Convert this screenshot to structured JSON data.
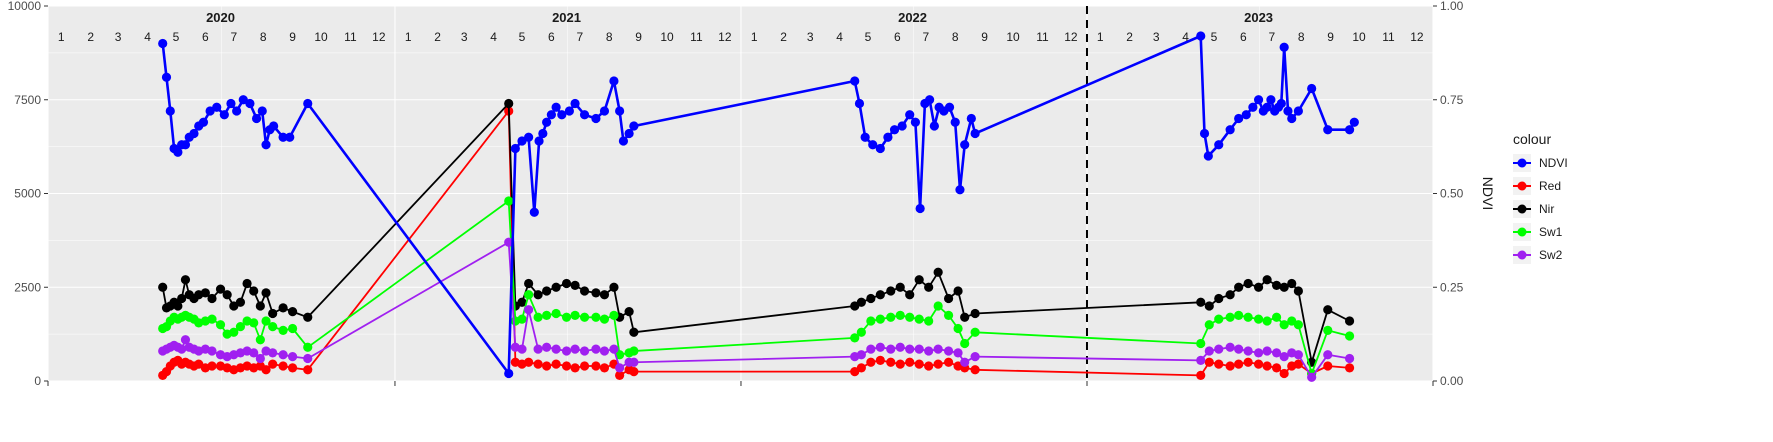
{
  "chart_data": {
    "type": "line",
    "x_unit": "date",
    "y_left_label": "",
    "y_right_label": "NDVI",
    "y_left_range": [
      0,
      10000
    ],
    "y_right_range": [
      0,
      1
    ],
    "y_left_ticks": [
      "0",
      "2500",
      "5000",
      "7500",
      "10000"
    ],
    "y_right_ticks": [
      "0.00",
      "0.25",
      "0.50",
      "0.75",
      "1.00"
    ],
    "x_range": [
      "2020-01-01",
      "2024-01-01"
    ],
    "years": [
      "2020",
      "2021",
      "2022",
      "2023"
    ],
    "months": [
      "1",
      "2",
      "3",
      "4",
      "5",
      "6",
      "7",
      "8",
      "9",
      "10",
      "11",
      "12"
    ],
    "vline_date": "2023-01-01",
    "grid": true,
    "legend": {
      "title": "colour",
      "position": "right"
    },
    "series": [
      {
        "name": "NDVI",
        "color": "#0000ff",
        "axis": "right",
        "x": [
          "2020-05-01",
          "2020-05-05",
          "2020-05-09",
          "2020-05-13",
          "2020-05-17",
          "2020-05-21",
          "2020-05-25",
          "2020-05-29",
          "2020-06-03",
          "2020-06-08",
          "2020-06-13",
          "2020-06-20",
          "2020-06-27",
          "2020-07-05",
          "2020-07-12",
          "2020-07-18",
          "2020-07-25",
          "2020-08-01",
          "2020-08-08",
          "2020-08-14",
          "2020-08-18",
          "2020-08-22",
          "2020-08-26",
          "2020-09-05",
          "2020-09-12",
          "2020-10-01",
          "2021-05-01",
          "2021-05-08",
          "2021-05-15",
          "2021-05-22",
          "2021-05-28",
          "2021-06-02",
          "2021-06-06",
          "2021-06-10",
          "2021-06-15",
          "2021-06-20",
          "2021-06-26",
          "2021-07-04",
          "2021-07-10",
          "2021-07-20",
          "2021-08-01",
          "2021-08-10",
          "2021-08-20",
          "2021-08-26",
          "2021-08-30",
          "2021-09-05",
          "2021-09-10",
          "2022-05-01",
          "2022-05-06",
          "2022-05-12",
          "2022-05-20",
          "2022-05-28",
          "2022-06-05",
          "2022-06-12",
          "2022-06-20",
          "2022-06-28",
          "2022-07-04",
          "2022-07-09",
          "2022-07-14",
          "2022-07-19",
          "2022-07-24",
          "2022-07-29",
          "2022-08-03",
          "2022-08-09",
          "2022-08-15",
          "2022-08-20",
          "2022-08-25",
          "2022-09-01",
          "2022-09-05",
          "2023-05-01",
          "2023-05-05",
          "2023-05-09",
          "2023-05-20",
          "2023-06-01",
          "2023-06-10",
          "2023-06-18",
          "2023-06-25",
          "2023-07-01",
          "2023-07-06",
          "2023-07-10",
          "2023-07-14",
          "2023-07-18",
          "2023-07-22",
          "2023-07-25",
          "2023-07-28",
          "2023-08-01",
          "2023-08-05",
          "2023-08-12",
          "2023-08-26",
          "2023-09-12",
          "2023-10-05",
          "2023-10-10"
        ],
        "y": [
          0.9,
          0.81,
          0.72,
          0.62,
          0.61,
          0.63,
          0.63,
          0.65,
          0.66,
          0.68,
          0.69,
          0.72,
          0.73,
          0.71,
          0.74,
          0.72,
          0.75,
          0.74,
          0.7,
          0.72,
          0.63,
          0.67,
          0.68,
          0.65,
          0.65,
          0.74,
          0.02,
          0.62,
          0.64,
          0.65,
          0.45,
          0.64,
          0.66,
          0.69,
          0.71,
          0.73,
          0.71,
          0.72,
          0.74,
          0.71,
          0.7,
          0.72,
          0.8,
          0.72,
          0.64,
          0.66,
          0.68,
          0.8,
          0.74,
          0.65,
          0.63,
          0.62,
          0.65,
          0.67,
          0.68,
          0.71,
          0.69,
          0.46,
          0.74,
          0.75,
          0.68,
          0.73,
          0.72,
          0.73,
          0.69,
          0.51,
          0.63,
          0.7,
          0.66,
          0.92,
          0.66,
          0.6,
          0.63,
          0.67,
          0.7,
          0.71,
          0.73,
          0.75,
          0.72,
          0.73,
          0.75,
          0.72,
          0.73,
          0.74,
          0.89,
          0.72,
          0.7,
          0.72,
          0.78,
          0.67,
          0.67,
          0.69
        ]
      },
      {
        "name": "Red",
        "color": "#ff0000",
        "axis": "left",
        "x": [
          "2020-05-01",
          "2020-05-05",
          "2020-05-09",
          "2020-05-13",
          "2020-05-17",
          "2020-05-21",
          "2020-05-25",
          "2020-05-29",
          "2020-06-03",
          "2020-06-08",
          "2020-06-15",
          "2020-06-22",
          "2020-07-01",
          "2020-07-08",
          "2020-07-15",
          "2020-07-22",
          "2020-07-29",
          "2020-08-05",
          "2020-08-12",
          "2020-08-18",
          "2020-08-25",
          "2020-09-05",
          "2020-09-15",
          "2020-10-01",
          "2021-05-01",
          "2021-05-08",
          "2021-05-15",
          "2021-05-22",
          "2021-06-01",
          "2021-06-10",
          "2021-06-20",
          "2021-07-01",
          "2021-07-10",
          "2021-07-20",
          "2021-08-01",
          "2021-08-10",
          "2021-08-20",
          "2021-08-26",
          "2021-09-05",
          "2021-09-10",
          "2022-05-01",
          "2022-05-08",
          "2022-05-18",
          "2022-05-28",
          "2022-06-08",
          "2022-06-18",
          "2022-06-28",
          "2022-07-08",
          "2022-07-18",
          "2022-07-28",
          "2022-08-08",
          "2022-08-18",
          "2022-08-25",
          "2022-09-05",
          "2023-05-01",
          "2023-05-10",
          "2023-05-20",
          "2023-06-01",
          "2023-06-10",
          "2023-06-20",
          "2023-07-01",
          "2023-07-10",
          "2023-07-20",
          "2023-07-28",
          "2023-08-05",
          "2023-08-12",
          "2023-08-26",
          "2023-09-12",
          "2023-10-05"
        ],
        "y": [
          150,
          250,
          400,
          500,
          550,
          450,
          500,
          450,
          400,
          450,
          350,
          400,
          400,
          350,
          300,
          350,
          400,
          350,
          400,
          300,
          450,
          400,
          350,
          300,
          7200,
          500,
          450,
          500,
          450,
          400,
          450,
          400,
          350,
          400,
          400,
          350,
          450,
          150,
          300,
          250,
          250,
          350,
          500,
          550,
          500,
          450,
          500,
          450,
          400,
          450,
          500,
          400,
          350,
          300,
          150,
          500,
          450,
          400,
          450,
          500,
          450,
          400,
          350,
          200,
          400,
          450,
          200,
          400,
          350
        ]
      },
      {
        "name": "Nir",
        "color": "#000000",
        "axis": "left",
        "x": [
          "2020-05-01",
          "2020-05-05",
          "2020-05-09",
          "2020-05-13",
          "2020-05-17",
          "2020-05-21",
          "2020-05-25",
          "2020-05-29",
          "2020-06-03",
          "2020-06-08",
          "2020-06-15",
          "2020-06-22",
          "2020-07-01",
          "2020-07-08",
          "2020-07-15",
          "2020-07-22",
          "2020-07-29",
          "2020-08-05",
          "2020-08-12",
          "2020-08-18",
          "2020-08-25",
          "2020-09-05",
          "2020-09-15",
          "2020-10-01",
          "2021-05-01",
          "2021-05-08",
          "2021-05-15",
          "2021-05-22",
          "2021-06-01",
          "2021-06-10",
          "2021-06-20",
          "2021-07-01",
          "2021-07-10",
          "2021-07-20",
          "2021-08-01",
          "2021-08-10",
          "2021-08-20",
          "2021-08-26",
          "2021-09-05",
          "2021-09-10",
          "2022-05-01",
          "2022-05-08",
          "2022-05-18",
          "2022-05-28",
          "2022-06-08",
          "2022-06-18",
          "2022-06-28",
          "2022-07-08",
          "2022-07-18",
          "2022-07-28",
          "2022-08-08",
          "2022-08-18",
          "2022-08-25",
          "2022-09-05",
          "2023-05-01",
          "2023-05-10",
          "2023-05-20",
          "2023-06-01",
          "2023-06-10",
          "2023-06-20",
          "2023-07-01",
          "2023-07-10",
          "2023-07-20",
          "2023-07-28",
          "2023-08-05",
          "2023-08-12",
          "2023-08-26",
          "2023-09-12",
          "2023-10-05"
        ],
        "y": [
          2500,
          1950,
          2000,
          2100,
          2000,
          2200,
          2700,
          2300,
          2200,
          2300,
          2350,
          2200,
          2450,
          2300,
          2000,
          2100,
          2600,
          2400,
          2000,
          2350,
          1800,
          1950,
          1850,
          1700,
          7400,
          2000,
          2100,
          2600,
          2300,
          2400,
          2500,
          2600,
          2550,
          2400,
          2350,
          2300,
          2500,
          1700,
          1850,
          1300,
          2000,
          2100,
          2200,
          2300,
          2400,
          2500,
          2300,
          2700,
          2500,
          2900,
          2200,
          2400,
          1700,
          1800,
          2100,
          2000,
          2200,
          2300,
          2500,
          2600,
          2500,
          2700,
          2550,
          2500,
          2600,
          2400,
          500,
          1900,
          1600
        ]
      },
      {
        "name": "Sw1",
        "color": "#00ff00",
        "axis": "left",
        "x": [
          "2020-05-01",
          "2020-05-05",
          "2020-05-09",
          "2020-05-13",
          "2020-05-17",
          "2020-05-21",
          "2020-05-25",
          "2020-05-29",
          "2020-06-03",
          "2020-06-08",
          "2020-06-15",
          "2020-06-22",
          "2020-07-01",
          "2020-07-08",
          "2020-07-15",
          "2020-07-22",
          "2020-07-29",
          "2020-08-05",
          "2020-08-12",
          "2020-08-18",
          "2020-08-25",
          "2020-09-05",
          "2020-09-15",
          "2020-10-01",
          "2021-05-01",
          "2021-05-08",
          "2021-05-15",
          "2021-05-22",
          "2021-06-01",
          "2021-06-10",
          "2021-06-20",
          "2021-07-01",
          "2021-07-10",
          "2021-07-20",
          "2021-08-01",
          "2021-08-10",
          "2021-08-20",
          "2021-08-26",
          "2021-09-05",
          "2021-09-10",
          "2022-05-01",
          "2022-05-08",
          "2022-05-18",
          "2022-05-28",
          "2022-06-08",
          "2022-06-18",
          "2022-06-28",
          "2022-07-08",
          "2022-07-18",
          "2022-07-28",
          "2022-08-08",
          "2022-08-18",
          "2022-08-25",
          "2022-09-05",
          "2023-05-01",
          "2023-05-10",
          "2023-05-20",
          "2023-06-01",
          "2023-06-10",
          "2023-06-20",
          "2023-07-01",
          "2023-07-10",
          "2023-07-20",
          "2023-07-28",
          "2023-08-05",
          "2023-08-12",
          "2023-08-26",
          "2023-09-12",
          "2023-10-05"
        ],
        "y": [
          1400,
          1450,
          1600,
          1700,
          1650,
          1700,
          1750,
          1700,
          1650,
          1550,
          1600,
          1650,
          1500,
          1250,
          1300,
          1450,
          1600,
          1550,
          1100,
          1600,
          1450,
          1350,
          1400,
          900,
          4800,
          1600,
          1650,
          2300,
          1700,
          1750,
          1800,
          1700,
          1750,
          1700,
          1700,
          1650,
          1750,
          700,
          750,
          800,
          1150,
          1300,
          1600,
          1650,
          1700,
          1750,
          1700,
          1650,
          1600,
          2000,
          1750,
          1400,
          1000,
          1300,
          1000,
          1500,
          1650,
          1700,
          1750,
          1700,
          1650,
          1600,
          1700,
          1500,
          1600,
          1500,
          200,
          1350,
          1200
        ]
      },
      {
        "name": "Sw2",
        "color": "#a020f0",
        "axis": "left",
        "x": [
          "2020-05-01",
          "2020-05-05",
          "2020-05-09",
          "2020-05-13",
          "2020-05-17",
          "2020-05-21",
          "2020-05-25",
          "2020-05-29",
          "2020-06-03",
          "2020-06-08",
          "2020-06-15",
          "2020-06-22",
          "2020-07-01",
          "2020-07-08",
          "2020-07-15",
          "2020-07-22",
          "2020-07-29",
          "2020-08-05",
          "2020-08-12",
          "2020-08-18",
          "2020-08-25",
          "2020-09-05",
          "2020-09-15",
          "2020-10-01",
          "2021-05-01",
          "2021-05-08",
          "2021-05-15",
          "2021-05-22",
          "2021-06-01",
          "2021-06-10",
          "2021-06-20",
          "2021-07-01",
          "2021-07-10",
          "2021-07-20",
          "2021-08-01",
          "2021-08-10",
          "2021-08-20",
          "2021-08-26",
          "2021-09-05",
          "2021-09-10",
          "2022-05-01",
          "2022-05-08",
          "2022-05-18",
          "2022-05-28",
          "2022-06-08",
          "2022-06-18",
          "2022-06-28",
          "2022-07-08",
          "2022-07-18",
          "2022-07-28",
          "2022-08-08",
          "2022-08-18",
          "2022-08-25",
          "2022-09-05",
          "2023-05-01",
          "2023-05-10",
          "2023-05-20",
          "2023-06-01",
          "2023-06-10",
          "2023-06-20",
          "2023-07-01",
          "2023-07-10",
          "2023-07-20",
          "2023-07-28",
          "2023-08-05",
          "2023-08-12",
          "2023-08-26",
          "2023-09-12",
          "2023-10-05"
        ],
        "y": [
          800,
          850,
          900,
          950,
          900,
          850,
          1100,
          900,
          850,
          800,
          850,
          800,
          700,
          650,
          700,
          750,
          800,
          750,
          600,
          800,
          750,
          700,
          650,
          600,
          3700,
          900,
          850,
          1900,
          850,
          900,
          850,
          800,
          850,
          800,
          850,
          800,
          850,
          350,
          500,
          500,
          650,
          700,
          850,
          900,
          850,
          900,
          850,
          850,
          800,
          850,
          800,
          750,
          500,
          650,
          550,
          800,
          850,
          900,
          850,
          800,
          750,
          800,
          750,
          650,
          750,
          700,
          100,
          700,
          600
        ]
      }
    ]
  }
}
